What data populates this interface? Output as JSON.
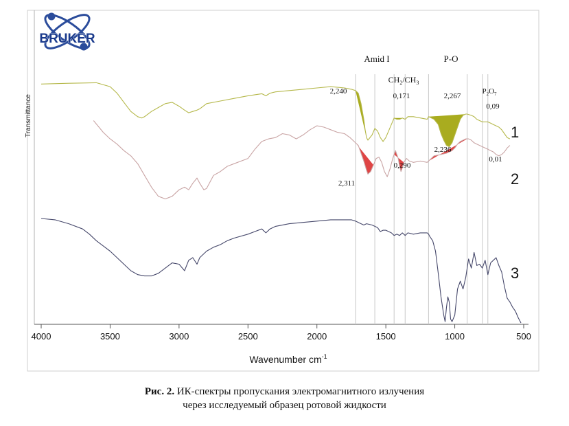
{
  "logo": {
    "text": "BRUKER"
  },
  "chart_data": {
    "type": "line",
    "title": "",
    "xlabel": "Wavenumber cm",
    "xlabel_sup": "-1",
    "ylabel": "Transmittance",
    "xlim": [
      4000,
      500
    ],
    "x_reversed": true,
    "x_ticks": [
      4000,
      3500,
      3000,
      2500,
      2000,
      1500,
      1000,
      500
    ],
    "x_tick_labels": [
      "4000",
      "3500",
      "3000",
      "2500",
      "2000",
      "1500",
      "1000",
      "500"
    ],
    "y_units": "transmittance (arbitrary, offset)",
    "ylim": [
      0,
      100
    ],
    "reference_lines": [
      1720,
      1580,
      1440,
      1360,
      1190,
      910,
      800,
      760
    ],
    "band_labels": [
      {
        "text": "Amid I",
        "x": 1540
      },
      {
        "text": "CH",
        "sub": "2",
        "text2": "/CH",
        "sub2": "3",
        "x": 1395
      },
      {
        "text": "P-O",
        "x": 1030
      },
      {
        "text": "P",
        "sub": "2",
        "text2": "O",
        "sub2": "7",
        "x": 765
      }
    ],
    "series": [
      {
        "name": "1",
        "color": "#b5b84a",
        "fill_color": "#a9ac1f",
        "x": [
          4000,
          3800,
          3600,
          3500,
          3450,
          3400,
          3350,
          3300,
          3270,
          3250,
          3200,
          3150,
          3100,
          3050,
          3000,
          2960,
          2930,
          2900,
          2870,
          2850,
          2800,
          2700,
          2600,
          2500,
          2400,
          2370,
          2340,
          2300,
          2200,
          2100,
          2000,
          1900,
          1800,
          1750,
          1720,
          1700,
          1680,
          1660,
          1650,
          1640,
          1630,
          1600,
          1580,
          1560,
          1540,
          1520,
          1500,
          1480,
          1460,
          1440,
          1420,
          1400,
          1380,
          1360,
          1340,
          1300,
          1250,
          1200,
          1190,
          1150,
          1120,
          1100,
          1080,
          1060,
          1040,
          1020,
          1000,
          980,
          960,
          940,
          920,
          910,
          880,
          860,
          840,
          820,
          800,
          790,
          780,
          770,
          760,
          740,
          720,
          700,
          680,
          660,
          640,
          620,
          600
        ],
        "y": [
          91.5,
          91.8,
          92,
          90.5,
          88,
          84.5,
          81,
          79,
          78.5,
          79,
          81,
          82.5,
          84,
          84.5,
          83,
          81.5,
          80.5,
          81,
          81.5,
          82,
          84,
          85,
          86,
          87,
          87.8,
          87,
          88,
          88.5,
          89,
          89.5,
          90,
          90.5,
          90,
          89.5,
          89,
          88,
          84,
          78,
          74,
          71,
          70,
          72,
          74.5,
          73.5,
          71,
          69.5,
          71,
          73.5,
          76,
          78.5,
          78,
          78,
          78.5,
          78,
          79,
          79,
          78.5,
          78,
          79,
          78,
          76,
          72.5,
          70,
          68,
          67.5,
          69,
          72,
          75,
          78,
          79.5,
          80,
          80,
          79.5,
          79,
          78,
          77.5,
          77,
          77,
          77,
          77,
          77,
          76.5,
          76,
          75.5,
          75,
          74,
          72.5,
          71,
          70.5
        ],
        "curve_label": "1"
      },
      {
        "name": "2",
        "color": "#c9a4a4",
        "fill_color": "#df4545",
        "x": [
          3620,
          3550,
          3500,
          3450,
          3400,
          3350,
          3300,
          3250,
          3200,
          3150,
          3100,
          3050,
          3000,
          2960,
          2930,
          2900,
          2870,
          2850,
          2820,
          2800,
          2750,
          2700,
          2650,
          2600,
          2500,
          2450,
          2400,
          2350,
          2300,
          2250,
          2200,
          2150,
          2100,
          2050,
          2000,
          1950,
          1900,
          1850,
          1800,
          1760,
          1730,
          1700,
          1680,
          1660,
          1640,
          1630,
          1610,
          1590,
          1570,
          1550,
          1530,
          1510,
          1490,
          1470,
          1450,
          1430,
          1410,
          1400,
          1390,
          1380,
          1370,
          1350,
          1330,
          1300,
          1250,
          1200,
          1180,
          1150,
          1100,
          1060,
          1040,
          1020,
          1000,
          980,
          960,
          940,
          920,
          900,
          880,
          860,
          840,
          820,
          800,
          780,
          760,
          740,
          720,
          700,
          680,
          660,
          640,
          620,
          600
        ],
        "y": [
          77.5,
          73,
          70.5,
          68.5,
          66,
          64,
          61,
          56.5,
          52,
          48.5,
          47.5,
          48.5,
          51,
          52,
          51,
          53.5,
          55.5,
          53.5,
          51,
          51.5,
          56.5,
          58,
          60,
          61,
          63,
          66.5,
          69.5,
          70.5,
          71,
          72.5,
          72,
          70.5,
          72,
          74,
          75.5,
          75,
          74,
          73,
          72.5,
          71,
          69.5,
          68,
          65,
          62,
          58.5,
          57,
          58,
          60.5,
          63,
          63.5,
          61.5,
          58,
          56,
          59,
          63,
          66,
          63,
          60,
          58,
          59.5,
          61.5,
          63,
          62,
          61.5,
          62,
          61.5,
          62.5,
          64,
          64.5,
          65,
          65.5,
          66,
          67,
          68.5,
          69.5,
          70,
          70.5,
          70.5,
          70,
          69,
          68.5,
          68,
          67.5,
          67,
          66.5,
          66,
          65.5,
          64.5,
          64,
          64.5,
          65.5,
          67,
          68
        ],
        "curve_label": "2"
      },
      {
        "name": "3",
        "color": "#45476a",
        "x": [
          4000,
          3900,
          3800,
          3700,
          3650,
          3600,
          3550,
          3500,
          3450,
          3400,
          3350,
          3300,
          3250,
          3200,
          3150,
          3100,
          3050,
          3000,
          2960,
          2930,
          2900,
          2870,
          2850,
          2800,
          2750,
          2700,
          2650,
          2600,
          2500,
          2450,
          2400,
          2370,
          2340,
          2300,
          2200,
          2100,
          2000,
          1900,
          1800,
          1750,
          1720,
          1700,
          1680,
          1660,
          1640,
          1600,
          1580,
          1560,
          1540,
          1520,
          1500,
          1480,
          1460,
          1440,
          1420,
          1400,
          1380,
          1360,
          1340,
          1300,
          1250,
          1200,
          1190,
          1180,
          1160,
          1140,
          1120,
          1100,
          1080,
          1070,
          1060,
          1050,
          1040,
          1030,
          1020,
          1000,
          980,
          960,
          940,
          920,
          900,
          880,
          860,
          840,
          820,
          800,
          780,
          760,
          740,
          720,
          700,
          680,
          660,
          640,
          620,
          600,
          580,
          560,
          540,
          520
        ],
        "y": [
          40,
          39.5,
          38,
          36,
          34,
          31.5,
          29.5,
          27.5,
          25,
          22.5,
          20,
          18.5,
          18,
          18,
          19,
          21,
          23,
          22.5,
          20,
          24,
          25,
          22.5,
          25,
          27.5,
          29,
          30,
          31.5,
          32.5,
          34,
          35,
          36,
          34.5,
          36,
          37,
          38,
          38.5,
          39,
          39.5,
          39.5,
          39.5,
          39,
          38.5,
          38,
          37.5,
          38,
          37.5,
          37,
          36.5,
          35,
          35.5,
          35.5,
          35,
          34.5,
          33.5,
          34,
          33.5,
          34.5,
          33.5,
          34.5,
          34,
          34.5,
          34.5,
          34,
          33,
          31.5,
          27.5,
          19,
          10,
          3,
          0.5,
          6,
          10,
          8,
          1.5,
          0.5,
          3,
          13,
          16,
          13,
          17.5,
          24.5,
          21,
          27,
          22,
          22.5,
          21,
          24,
          18.5,
          23,
          24,
          25,
          22,
          19.5,
          14,
          9.5,
          8,
          6,
          4.5,
          2,
          0
        ],
        "curve_label": "3"
      }
    ],
    "filled_peaks": [
      {
        "series": "1",
        "label": "2,240",
        "x_range": [
          1720,
          1640
        ]
      },
      {
        "series": "1",
        "label": "0,171",
        "x_range": [
          1440,
          1380
        ]
      },
      {
        "series": "1",
        "label": "2,267",
        "x_range": [
          1190,
          910
        ]
      },
      {
        "series": "1",
        "label": "0,09",
        "x_range": [
          800,
          760
        ]
      },
      {
        "series": "2",
        "label": "2,311",
        "x_range": [
          1720,
          1590
        ]
      },
      {
        "series": "2",
        "label": "0,290",
        "x_range": [
          1440,
          1370
        ]
      },
      {
        "series": "2",
        "label": "2,236",
        "x_range": [
          1190,
          910
        ]
      },
      {
        "series": "2",
        "label": "0,01",
        "x_range": [
          800,
          760
        ]
      }
    ]
  },
  "caption": {
    "line1_prefix": "Рис. 2.",
    "line1_rest": " ИК-спектры пропускания электромагнитного излучения",
    "line2": "через исследуемый образец ротовой жидкости"
  }
}
